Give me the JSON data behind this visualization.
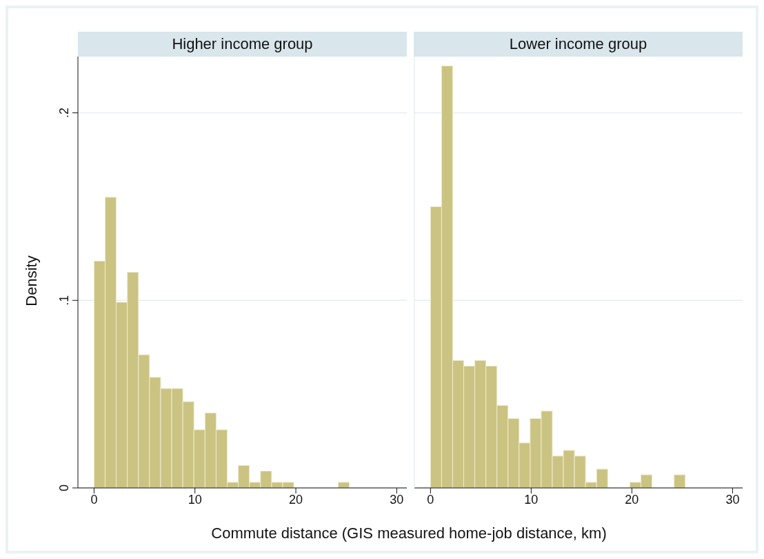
{
  "chart_data": [
    {
      "type": "histogram",
      "title": "Higher income group",
      "xlabel": "Commute distance (GIS measured home-job distance, km)",
      "ylabel": "Density",
      "color": "#cbc382",
      "bins": [
        0,
        1.1,
        2.2,
        3.3,
        4.4,
        5.5,
        6.6,
        7.7,
        8.8,
        9.9,
        11,
        12.1,
        13.2,
        14.3,
        15.4,
        16.5,
        17.6,
        18.7,
        19.8,
        20.9,
        22,
        23.1,
        24.2,
        25.3
      ],
      "values": [
        0.121,
        0.155,
        0.099,
        0.115,
        0.071,
        0.059,
        0.053,
        0.053,
        0.046,
        0.031,
        0.04,
        0.031,
        0.003,
        0.012,
        0.003,
        0.009,
        0.003,
        0.003,
        0,
        0,
        0,
        0,
        0.003
      ],
      "xlim": [
        -1.6,
        31
      ],
      "xticks": [
        0,
        10,
        20,
        30
      ],
      "ylim": [
        0,
        0.23
      ],
      "yticks": [
        0,
        {
          "value": 0.1,
          "label": ".1"
        },
        {
          "value": 0.2,
          "label": ".2"
        }
      ],
      "grid": "y"
    },
    {
      "type": "histogram",
      "title": "Lower income group",
      "color": "#cbc382",
      "bins": [
        0,
        1.1,
        2.2,
        3.3,
        4.4,
        5.5,
        6.6,
        7.7,
        8.8,
        9.9,
        11,
        12.1,
        13.2,
        14.3,
        15.4,
        16.5,
        17.6,
        18.7,
        19.8,
        20.9,
        22,
        23.1,
        24.2,
        25.3
      ],
      "values": [
        0.15,
        0.225,
        0.068,
        0.065,
        0.068,
        0.065,
        0.044,
        0.037,
        0.024,
        0.037,
        0.041,
        0.017,
        0.02,
        0.017,
        0.003,
        0.01,
        0,
        0,
        0.003,
        0.007,
        0,
        0,
        0.007
      ],
      "xlim": [
        -1.6,
        31
      ],
      "xticks": [
        0,
        10,
        20,
        30
      ],
      "ylim": [
        0,
        0.23
      ],
      "yticks": [
        0,
        0.1,
        0.2
      ],
      "grid": "y",
      "tick_labels": "x"
    }
  ]
}
